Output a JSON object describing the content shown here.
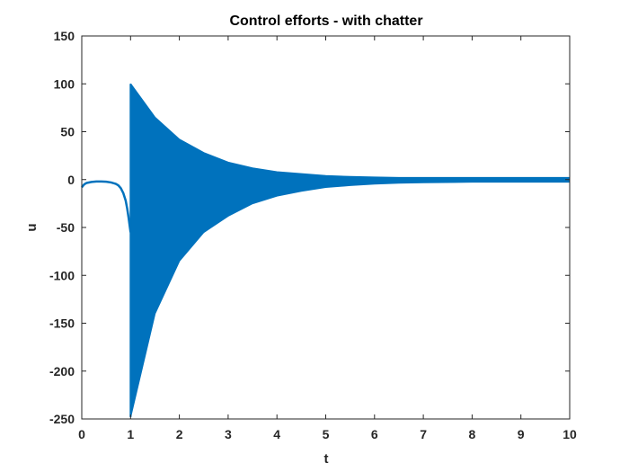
{
  "chart_data": {
    "type": "line",
    "title": "Control efforts - with chatter",
    "xlabel": "t",
    "ylabel": "u",
    "xlim": [
      0,
      10
    ],
    "ylim": [
      -250,
      150
    ],
    "xticks": [
      0,
      1,
      2,
      3,
      4,
      5,
      6,
      7,
      8,
      9,
      10
    ],
    "yticks": [
      150,
      100,
      50,
      0,
      -50,
      -100,
      -150,
      -200,
      -250
    ],
    "grid": false,
    "box": true,
    "series": [
      {
        "color": "#0072bd",
        "smooth_part": {
          "x": [
            0,
            0.05,
            0.1,
            0.2,
            0.3,
            0.4,
            0.5,
            0.6,
            0.7,
            0.75,
            0.8,
            0.85,
            0.9,
            0.93,
            0.96,
            1.0
          ],
          "y": [
            -8,
            -5,
            -3.5,
            -2.5,
            -2,
            -2,
            -2.2,
            -3,
            -4.5,
            -6,
            -9,
            -14,
            -22,
            -30,
            -40,
            -55
          ]
        },
        "chatter_band": {
          "x": [
            1.0,
            1.5,
            2.0,
            2.5,
            3.0,
            3.5,
            4.0,
            4.5,
            5.0,
            5.5,
            6.0,
            6.5,
            7.0,
            8.0,
            9.0,
            10.0
          ],
          "upper": [
            100,
            65,
            42,
            28,
            18,
            12,
            8,
            6,
            4,
            3,
            2.5,
            2,
            2,
            2,
            2,
            2
          ],
          "lower": [
            -248,
            -140,
            -85,
            -55,
            -38,
            -25,
            -17,
            -12,
            -8,
            -6,
            -4.5,
            -3.5,
            -3,
            -2.5,
            -2.5,
            -2.5
          ]
        }
      }
    ]
  }
}
